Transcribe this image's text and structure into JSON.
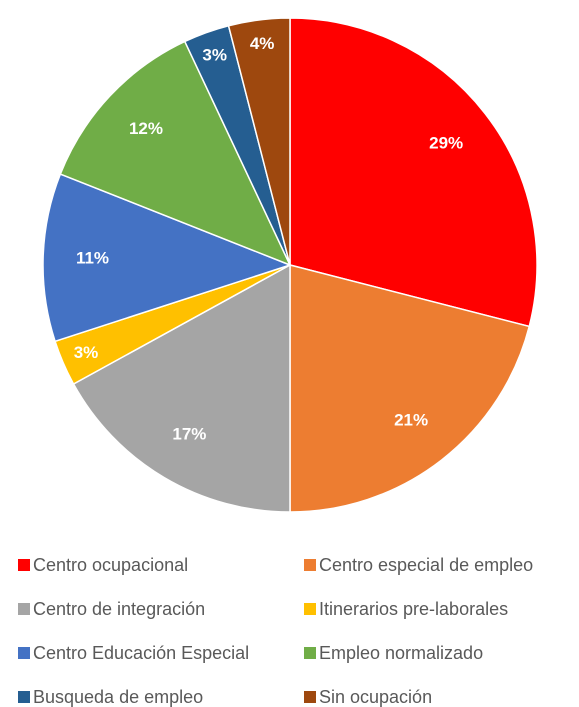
{
  "chart_data": {
    "type": "pie",
    "categories": [
      "Centro ocupacional",
      "Centro especial de empleo",
      "Centro de integración",
      "Itinerarios pre-laborales",
      "Centro Educación Especial",
      "Empleo normalizado",
      "Busqueda de empleo",
      "Sin ocupación"
    ],
    "values": [
      29,
      21,
      17,
      3,
      11,
      12,
      3,
      4
    ],
    "value_labels": [
      "29%",
      "21%",
      "17%",
      "3%",
      "11%",
      "12%",
      "3%",
      "4%"
    ],
    "colors": [
      "#ff0000",
      "#ed7d31",
      "#a5a5a5",
      "#ffc000",
      "#4472c4",
      "#70ad47",
      "#255e91",
      "#9e480e"
    ],
    "legend": "bottom"
  }
}
